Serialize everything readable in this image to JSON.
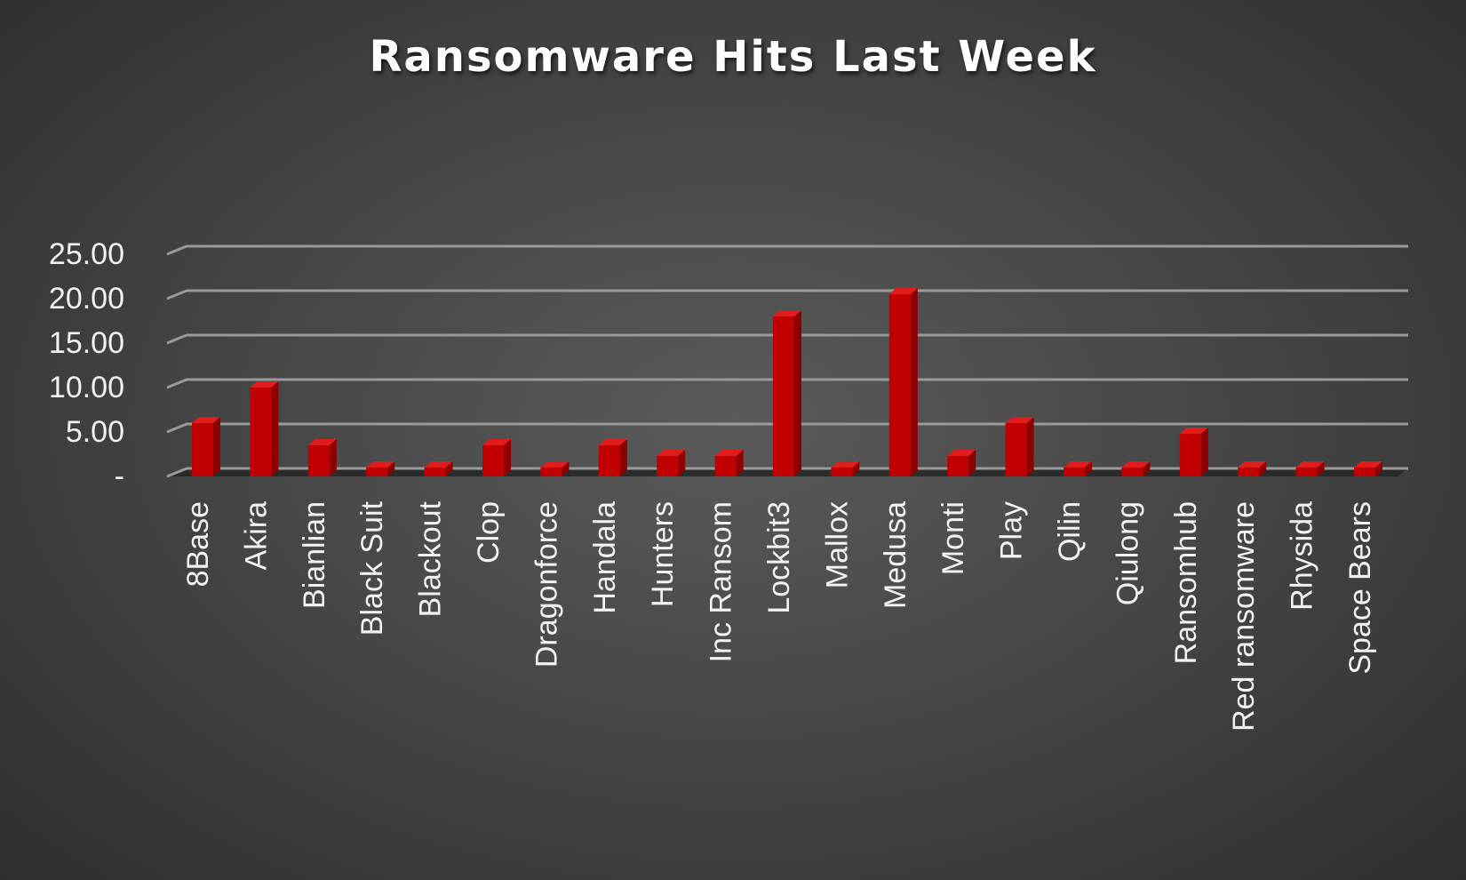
{
  "chart_data": {
    "type": "bar",
    "title": "Ransomware Hits Last Week",
    "xlabel": "",
    "ylabel": "",
    "ylim": [
      0,
      25
    ],
    "ytick_labels": [
      "-",
      "5.00",
      "10.00",
      "15.00",
      "20.00",
      "25.00"
    ],
    "grid": true,
    "style": "3d-column",
    "categories": [
      "8Base",
      "Akira",
      "Bianlian",
      "Black Suit",
      "Blackout",
      "Clop",
      "Dragonforce",
      "Handala",
      "Hunters",
      "Inc Ransom",
      "Lockbit3",
      "Mallox",
      "Medusa",
      "Monti",
      "Play",
      "Qilin",
      "Qiulong",
      "Ransomhub",
      "Red ransomware",
      "Rhysida",
      "Space Bears"
    ],
    "values": [
      6,
      10,
      3.5,
      1,
      1,
      3.5,
      1,
      3.5,
      2.3,
      2.3,
      18,
      1,
      20.5,
      2.3,
      6,
      1,
      1,
      4.8,
      1,
      1,
      1
    ],
    "colors": {
      "bar_front": "#c00000",
      "bar_side": "#8c0000",
      "bar_top": "#e01c1c",
      "grid": "#9a9a9a",
      "text": "#f2f2f2"
    }
  }
}
